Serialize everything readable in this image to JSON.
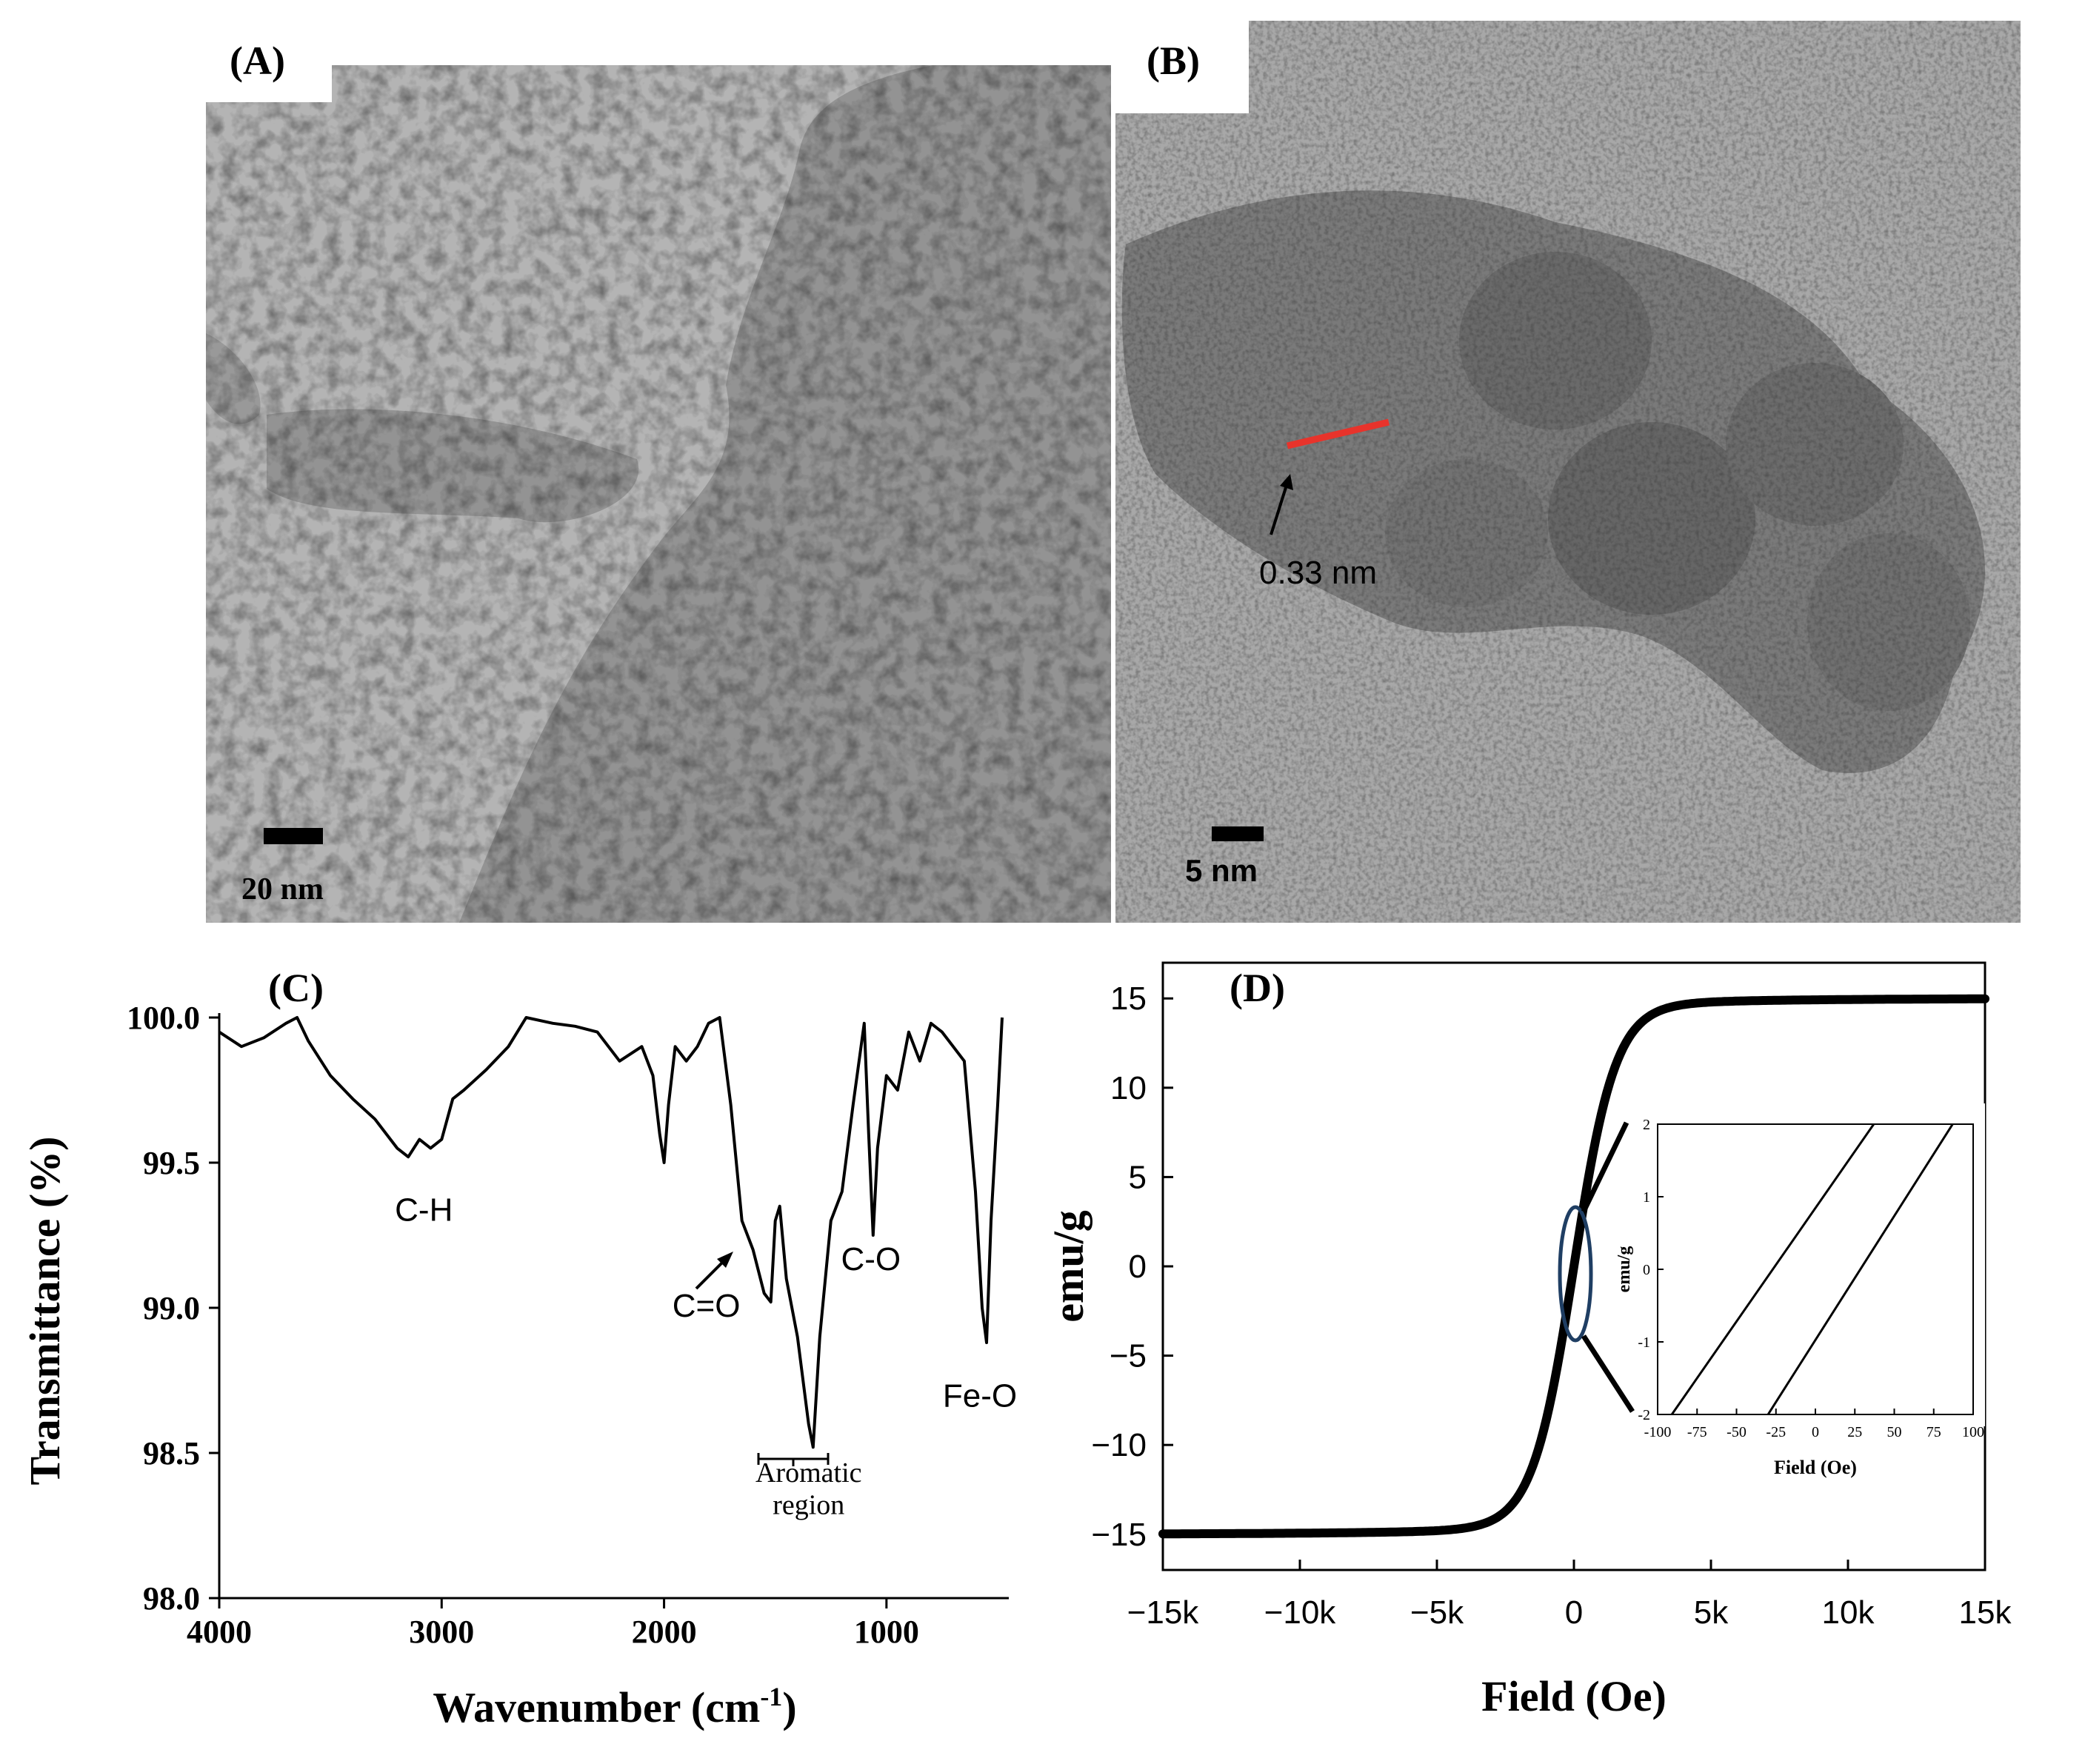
{
  "panels": {
    "A": {
      "label": "(A)",
      "scale_bar": "20 nm"
    },
    "B": {
      "label": "(B)",
      "scale_bar": "5 nm",
      "annotation": "0.33 nm"
    },
    "C": {
      "label": "(C)"
    },
    "D": {
      "label": "(D)"
    }
  },
  "chart_data": [
    {
      "panel": "C",
      "type": "line",
      "xlabel": "Wavenumber (cm-1)",
      "xlabel_base": "Wavenumber (cm",
      "xlabel_sup": "-1",
      "xlabel_end": ")",
      "ylabel": "Transmittance (%)",
      "xlim": [
        4000,
        450
      ],
      "ylim": [
        98.0,
        100.0
      ],
      "x_ticks": [
        4000,
        3000,
        2000,
        1000
      ],
      "x_tick_labels": [
        "4000",
        "3000",
        "2000",
        "1000"
      ],
      "y_ticks": [
        98.0,
        98.5,
        99.0,
        99.5,
        100.0
      ],
      "y_tick_labels": [
        "98.0",
        "98.5",
        "99.0",
        "99.5",
        "100.0"
      ],
      "series": [
        {
          "x": [
            4000,
            3900,
            3800,
            3700,
            3650,
            3600,
            3500,
            3400,
            3300,
            3200,
            3150,
            3100,
            3050,
            3000,
            2950,
            2900,
            2800,
            2700,
            2620,
            2500,
            2400,
            2300,
            2200,
            2100,
            2050,
            2020,
            2000,
            1980,
            1950,
            1900,
            1850,
            1800,
            1750,
            1700,
            1650,
            1600,
            1550,
            1520,
            1500,
            1480,
            1450,
            1400,
            1350,
            1330,
            1300,
            1250,
            1200,
            1150,
            1100,
            1080,
            1060,
            1040,
            1000,
            950,
            900,
            850,
            800,
            750,
            700,
            650,
            600,
            570,
            550,
            530,
            500,
            480
          ],
          "y": [
            99.95,
            99.9,
            99.93,
            99.98,
            100.0,
            99.92,
            99.8,
            99.72,
            99.65,
            99.55,
            99.52,
            99.58,
            99.55,
            99.58,
            99.72,
            99.75,
            99.82,
            99.9,
            100.0,
            99.98,
            99.97,
            99.95,
            99.85,
            99.9,
            99.8,
            99.6,
            99.5,
            99.7,
            99.9,
            99.85,
            99.9,
            99.98,
            100.0,
            99.7,
            99.3,
            99.2,
            99.05,
            99.02,
            99.3,
            99.35,
            99.1,
            98.9,
            98.6,
            98.52,
            98.9,
            99.3,
            99.4,
            99.7,
            99.98,
            99.6,
            99.25,
            99.55,
            99.8,
            99.75,
            99.95,
            99.85,
            99.98,
            99.95,
            99.9,
            99.85,
            99.4,
            99.0,
            98.88,
            99.3,
            99.7,
            100.0
          ]
        }
      ],
      "annotations": [
        {
          "text": "C-H",
          "x": 3080,
          "y": 99.3
        },
        {
          "text": "C=O",
          "x": 1810,
          "y": 98.97
        },
        {
          "text": "C-O",
          "x": 1070,
          "y": 99.13
        },
        {
          "text": "Fe-O",
          "x": 580,
          "y": 98.66
        },
        {
          "text": "Aromatic",
          "x": 1350,
          "y": 98.4
        },
        {
          "text": "region",
          "x": 1350,
          "y": 98.29
        }
      ]
    },
    {
      "panel": "D",
      "type": "line",
      "xlabel": "Field (Oe)",
      "ylabel": "emu/g",
      "xlim": [
        -15000,
        15000
      ],
      "ylim": [
        -17,
        17
      ],
      "x_ticks": [
        -15000,
        -10000,
        -5000,
        0,
        5000,
        10000,
        15000
      ],
      "x_tick_labels": [
        "−15k",
        "−10k",
        "−5k",
        "0",
        "5k",
        "10k",
        "15k"
      ],
      "y_ticks": [
        -15,
        -10,
        -5,
        0,
        5,
        10,
        15
      ],
      "y_tick_labels": [
        "−15",
        "−10",
        "−5",
        "0",
        "5",
        "10",
        "15"
      ],
      "saturation_magnetization": 15,
      "inset": {
        "xlabel": "Field (Oe)",
        "ylabel": "emu/g",
        "xlim": [
          -100,
          100
        ],
        "ylim": [
          -2,
          2
        ],
        "x_ticks": [
          -100,
          -75,
          -50,
          -25,
          0,
          25,
          50,
          75,
          100
        ],
        "x_tick_labels": [
          "-100",
          "-75",
          "-50",
          "-25",
          "0",
          "25",
          "50",
          "75",
          "100"
        ],
        "y_ticks": [
          -2,
          -1,
          0,
          1,
          2
        ],
        "y_tick_labels": [
          "-2",
          "-1",
          "0",
          "1",
          "2"
        ],
        "series": [
          {
            "x": [
              -91,
              37
            ],
            "y": [
              -2,
              2
            ]
          },
          {
            "x": [
              -30,
              87
            ],
            "y": [
              -2,
              2
            ]
          }
        ]
      }
    }
  ]
}
